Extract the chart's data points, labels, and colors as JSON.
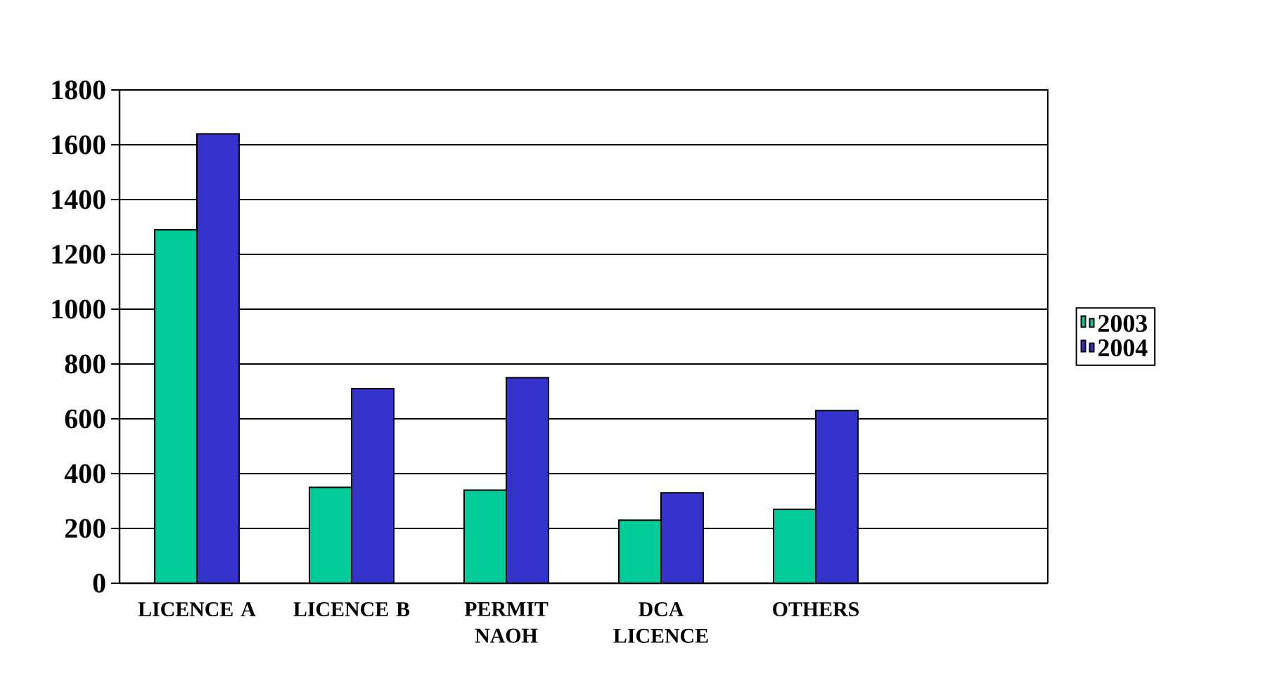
{
  "chart_data": {
    "type": "bar",
    "categories": [
      "LICENCE A",
      "LICENCE B",
      "PERMIT NAOH",
      "DCA LICENCE",
      "OTHERS",
      null
    ],
    "series": [
      {
        "name": "2003",
        "color": "#00cc99",
        "values": [
          1290,
          350,
          340,
          230,
          270,
          null
        ]
      },
      {
        "name": "2004",
        "color": "#3333cc",
        "values": [
          1640,
          710,
          750,
          330,
          630,
          null
        ]
      }
    ],
    "ylim": [
      0,
      1800
    ],
    "yticks": [
      0,
      200,
      400,
      600,
      800,
      1000,
      1200,
      1400,
      1600,
      1800
    ],
    "grid": "y",
    "legend": "right"
  }
}
